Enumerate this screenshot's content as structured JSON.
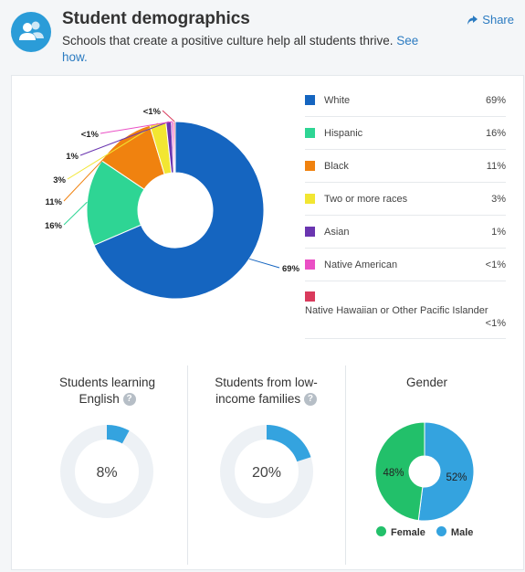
{
  "header": {
    "title": "Student demographics",
    "subtitle": "Schools that create a positive culture help all students thrive.",
    "link": "See how.",
    "share": "Share"
  },
  "colors": {
    "White": "#1565c0",
    "Hispanic": "#2ed594",
    "Black": "#f0820f",
    "Two or more races": "#f2e632",
    "Asian": "#6a35b0",
    "Native American": "#ea4fc5",
    "Native Hawaiian": "#d93a5c",
    "female": "#22c06a",
    "male": "#34a3df",
    "track": "#edf1f5"
  },
  "chart_data": [
    {
      "type": "pie",
      "categories": [
        "White",
        "Hispanic",
        "Black",
        "Two or more races",
        "Asian",
        "Native American",
        "Native Hawaiian or Other Pacific Islander"
      ],
      "values": [
        69,
        16,
        11,
        3,
        1,
        0.4,
        0.3
      ],
      "labels": [
        "69%",
        "16%",
        "11%",
        "3%",
        "1%",
        "<1%",
        "<1%"
      ]
    },
    {
      "type": "pie",
      "title": "Students learning English",
      "categories": [
        "Students learning English"
      ],
      "values": [
        8
      ],
      "center_label": "8%"
    },
    {
      "type": "pie",
      "title": "Students from low-income families",
      "categories": [
        "Students from low-income families"
      ],
      "values": [
        20
      ],
      "center_label": "20%"
    },
    {
      "type": "pie",
      "title": "Gender",
      "categories": [
        "Female",
        "Male"
      ],
      "values": [
        48,
        52
      ],
      "labels": [
        "48%",
        "52%"
      ]
    }
  ],
  "sections": {
    "english_title_1": "Students learning",
    "english_title_2": "English",
    "income_title_1": "Students from low-",
    "income_title_2": "income families",
    "gender_title": "Gender",
    "help": "?"
  }
}
